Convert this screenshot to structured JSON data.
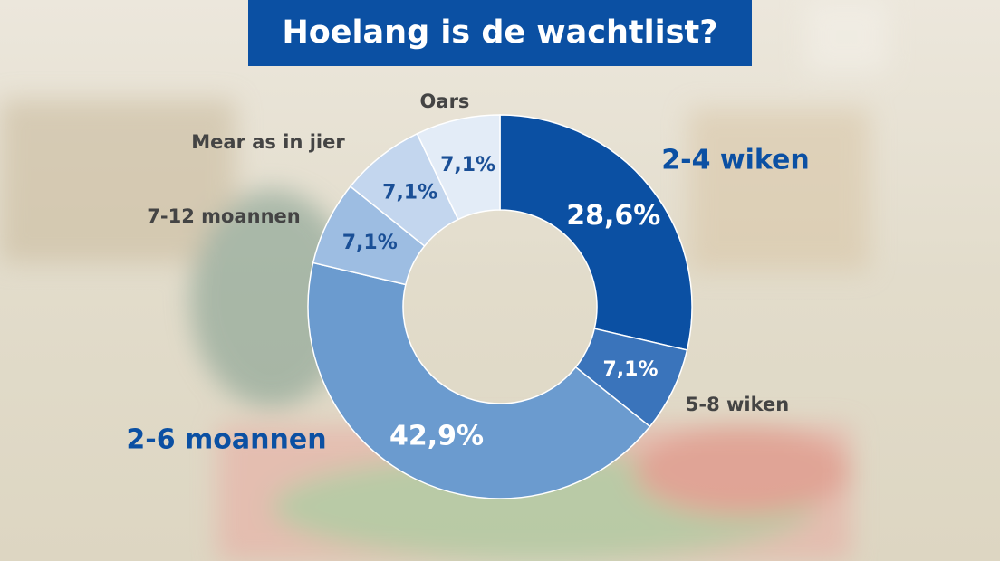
{
  "chart_data": {
    "type": "pie",
    "title": "Hoelang is de wachtlist?",
    "categories": [
      "2-4 wiken",
      "5-8 wiken",
      "2-6 moannen",
      "7-12 moannen",
      "Mear as in jier",
      "Oars"
    ],
    "values": [
      28.6,
      7.1,
      42.9,
      7.1,
      7.1,
      7.1
    ],
    "value_labels": [
      "28,6%",
      "7,1%",
      "42,9%",
      "7,1%",
      "7,1%",
      "7,1%"
    ],
    "colors": [
      "#0b50a3",
      "#3a74bb",
      "#6b9bcf",
      "#9dbde2",
      "#c3d6ee",
      "#e3ecf7"
    ]
  }
}
